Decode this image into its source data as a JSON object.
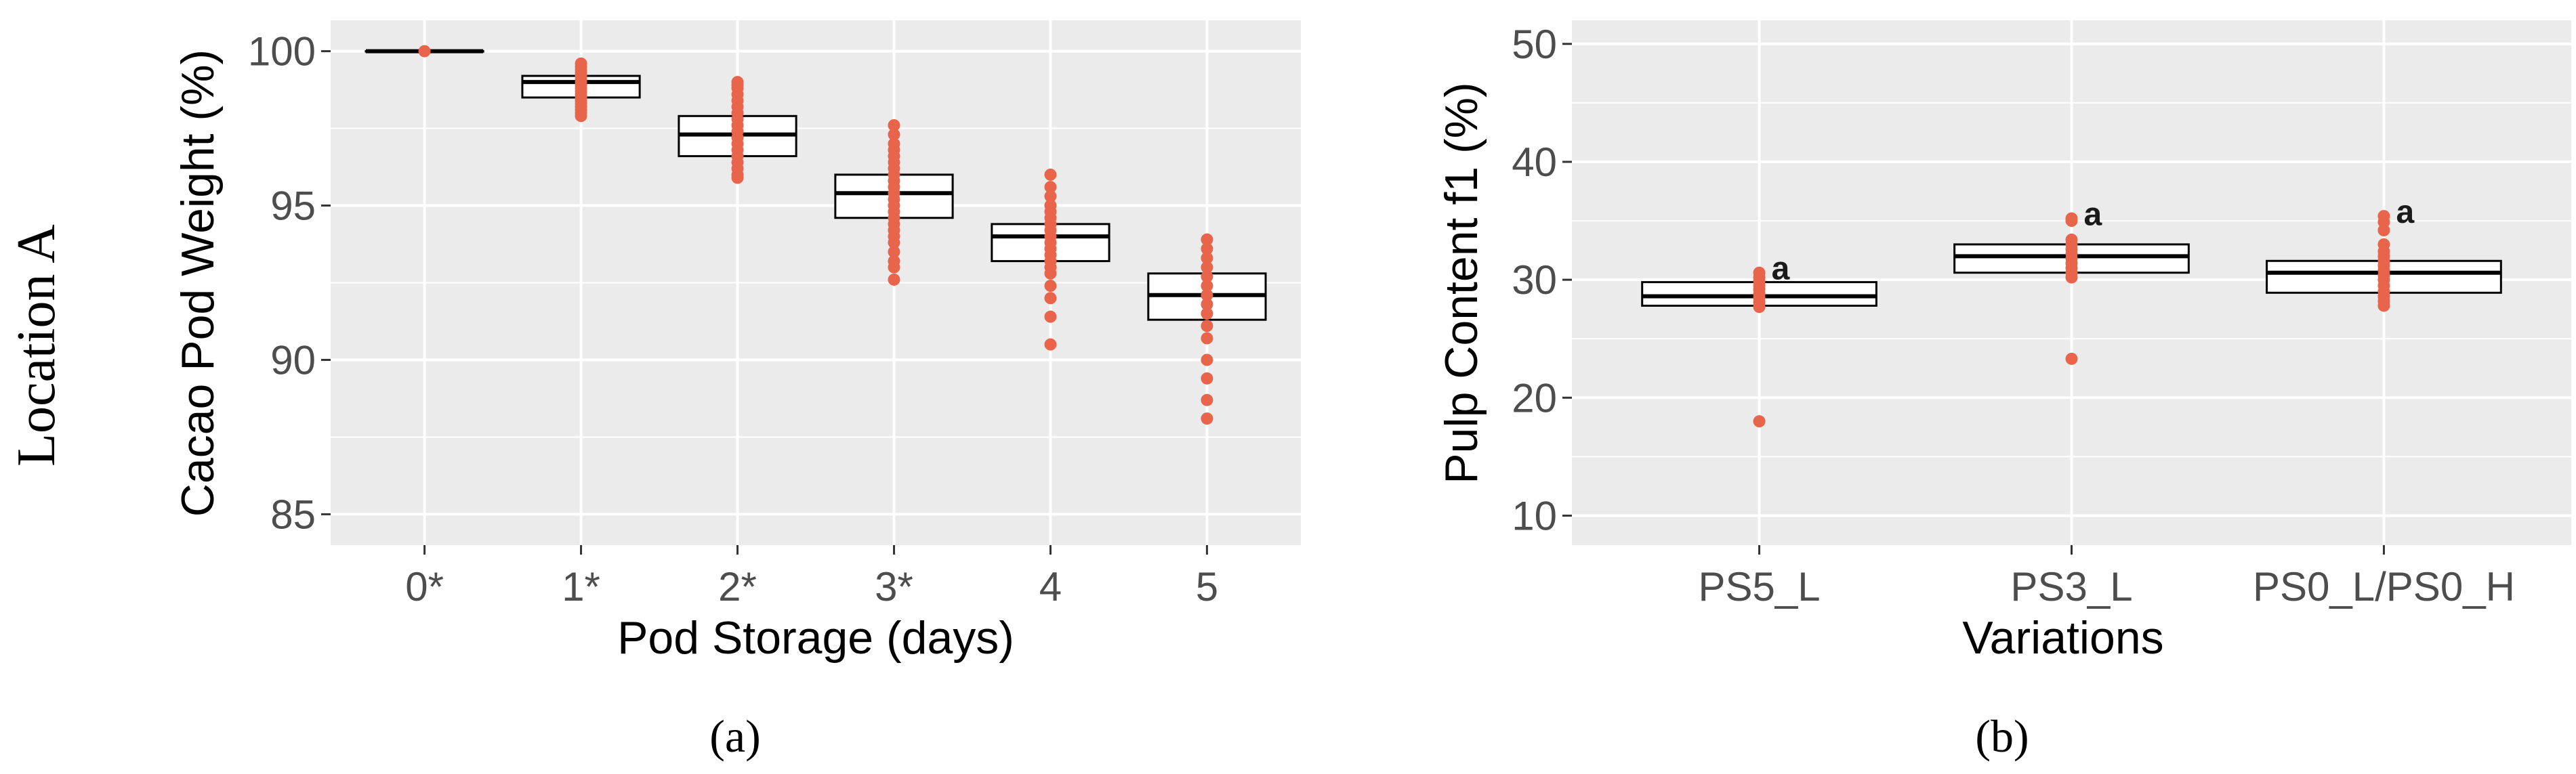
{
  "row_label": "Location A",
  "colors": {
    "panel_bg": "#EBEBEB",
    "grid": "#FFFFFF",
    "point": "#E8644A",
    "box_fill": "#FFFFFF",
    "box_line": "#000000",
    "tick_text": "#4D4D4D"
  },
  "chart_data": [
    {
      "type": "box",
      "panel": "a",
      "caption": "(a)",
      "xlabel": "Pod Storage (days)",
      "ylabel": "Cacao Pod Weight (%)",
      "ylim": [
        84,
        101
      ],
      "yticks": [
        85,
        90,
        95,
        100
      ],
      "grid": true,
      "categories": [
        "0*",
        "1*",
        "2*",
        "3*",
        "4",
        "5"
      ],
      "boxes": [
        {
          "q1": 100.0,
          "median": 100.0,
          "q3": 100.0
        },
        {
          "q1": 98.5,
          "median": 99.0,
          "q3": 99.2
        },
        {
          "q1": 96.6,
          "median": 97.3,
          "q3": 97.9
        },
        {
          "q1": 94.6,
          "median": 95.4,
          "q3": 96.0
        },
        {
          "q1": 93.2,
          "median": 94.0,
          "q3": 94.4
        },
        {
          "q1": 91.3,
          "median": 92.1,
          "q3": 92.8
        }
      ],
      "points": [
        [
          100.0
        ],
        [
          99.6,
          99.5,
          99.4,
          99.3,
          99.2,
          99.1,
          99.0,
          98.9,
          98.8,
          98.7,
          98.6,
          98.5,
          98.4,
          98.3,
          98.2,
          98.1,
          98.0,
          97.9
        ],
        [
          99.0,
          98.9,
          98.8,
          98.6,
          98.4,
          98.2,
          98.0,
          97.8,
          97.6,
          97.4,
          97.2,
          97.0,
          96.8,
          96.6,
          96.4,
          96.2,
          96.0,
          95.9
        ],
        [
          97.6,
          97.3,
          97.0,
          96.8,
          96.6,
          96.4,
          96.2,
          96.0,
          95.8,
          95.6,
          95.4,
          95.2,
          95.0,
          94.8,
          94.6,
          94.4,
          94.2,
          94.0,
          93.8,
          93.5,
          93.2,
          93.0,
          92.6
        ],
        [
          96.0,
          95.6,
          95.3,
          95.0,
          94.8,
          94.6,
          94.4,
          94.2,
          94.0,
          93.8,
          93.6,
          93.4,
          93.2,
          93.0,
          92.8,
          92.4,
          92.0,
          91.4,
          90.5
        ],
        [
          93.9,
          93.6,
          93.3,
          93.0,
          92.7,
          92.4,
          92.1,
          91.8,
          91.5,
          91.1,
          90.7,
          90.0,
          89.4,
          88.7,
          88.1
        ]
      ]
    },
    {
      "type": "box",
      "panel": "b",
      "caption": "(b)",
      "xlabel": "Variations",
      "ylabel": "Pulp Content f1 (%)",
      "ylim": [
        7.5,
        52
      ],
      "yticks": [
        10,
        20,
        30,
        40,
        50
      ],
      "grid": true,
      "categories": [
        "PS5_L",
        "PS3_L",
        "PS0_L/PS0_H"
      ],
      "annotations": [
        "a",
        "a",
        "a"
      ],
      "boxes": [
        {
          "q1": 27.8,
          "median": 28.6,
          "q3": 29.8
        },
        {
          "q1": 30.6,
          "median": 32.0,
          "q3": 33.0
        },
        {
          "q1": 28.9,
          "median": 30.6,
          "q3": 31.6
        }
      ],
      "points": [
        [
          30.6,
          30.2,
          29.9,
          29.5,
          29.2,
          28.8,
          28.5,
          28.1,
          27.7,
          18.0
        ],
        [
          35.2,
          35.0,
          33.4,
          33.0,
          32.6,
          32.2,
          31.8,
          31.4,
          31.0,
          30.6,
          30.2,
          23.3
        ],
        [
          35.4,
          34.9,
          34.2,
          33.0,
          32.4,
          32.0,
          31.6,
          31.2,
          30.8,
          30.4,
          30.0,
          29.5,
          29.0,
          28.6,
          28.2,
          27.8
        ]
      ]
    }
  ]
}
